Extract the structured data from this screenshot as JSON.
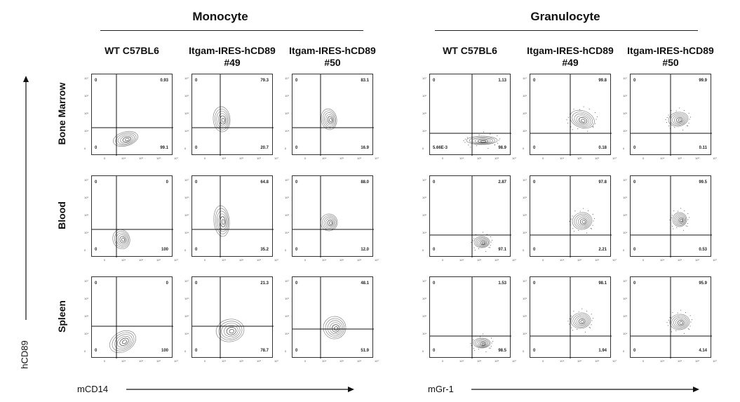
{
  "groups": [
    {
      "title": "Monocyte"
    },
    {
      "title": "Granulocyte"
    }
  ],
  "column_headers": [
    {
      "line1": "WT C57BL6",
      "line2": ""
    },
    {
      "line1": "Itgam-IRES-hCD89",
      "line2": "#49"
    },
    {
      "line1": "Itgam-IRES-hCD89",
      "line2": "#50"
    },
    {
      "line1": "WT C57BL6",
      "line2": ""
    },
    {
      "line1": "Itgam-IRES-hCD89",
      "line2": "#49"
    },
    {
      "line1": "Itgam-IRES-hCD89",
      "line2": "#50"
    }
  ],
  "row_labels": [
    "Bone Marrow",
    "Blood",
    "Spleen"
  ],
  "axes": {
    "y_title": "hCD89",
    "monocyte_x_title": "mCD14",
    "granulocyte_x_title": "mGr-1"
  },
  "panels": [
    [
      {
        "ul": "0",
        "ur": "0.93",
        "ll": "0",
        "lr": "99.1"
      },
      {
        "ul": "0",
        "ur": "79.3",
        "ll": "0",
        "lr": "20.7"
      },
      {
        "ul": "0",
        "ur": "83.1",
        "ll": "0",
        "lr": "16.9"
      },
      {
        "ul": "0",
        "ur": "1.13",
        "ll": "5.66E-3",
        "lr": "98.9"
      },
      {
        "ul": "0",
        "ur": "99.8",
        "ll": "0",
        "lr": "0.18"
      },
      {
        "ul": "0",
        "ur": "99.9",
        "ll": "0",
        "lr": "0.11"
      }
    ],
    [
      {
        "ul": "0",
        "ur": "0",
        "ll": "0",
        "lr": "100"
      },
      {
        "ul": "0",
        "ur": "64.8",
        "ll": "0",
        "lr": "35.2"
      },
      {
        "ul": "0",
        "ur": "88.0",
        "ll": "0",
        "lr": "12.0"
      },
      {
        "ul": "0",
        "ur": "2.87",
        "ll": "0",
        "lr": "97.1"
      },
      {
        "ul": "0",
        "ur": "97.8",
        "ll": "0",
        "lr": "2.21"
      },
      {
        "ul": "0",
        "ur": "99.5",
        "ll": "0",
        "lr": "0.53"
      }
    ],
    [
      {
        "ul": "0",
        "ur": "0",
        "ll": "0",
        "lr": "100"
      },
      {
        "ul": "0",
        "ur": "21.3",
        "ll": "0",
        "lr": "78.7"
      },
      {
        "ul": "0",
        "ur": "48.1",
        "ll": "0",
        "lr": "51.9"
      },
      {
        "ul": "0",
        "ur": "1.53",
        "ll": "0",
        "lr": "98.5"
      },
      {
        "ul": "0",
        "ur": "98.1",
        "ll": "0",
        "lr": "1.94"
      },
      {
        "ul": "0",
        "ur": "95.9",
        "ll": "0",
        "lr": "4.14"
      }
    ]
  ],
  "tick_labels": {
    "y": [
      "10⁷",
      "10⁶",
      "10⁵",
      "10⁴",
      "0"
    ],
    "x": [
      "0",
      "10⁴",
      "10⁵",
      "10⁶",
      "10⁷"
    ]
  }
}
